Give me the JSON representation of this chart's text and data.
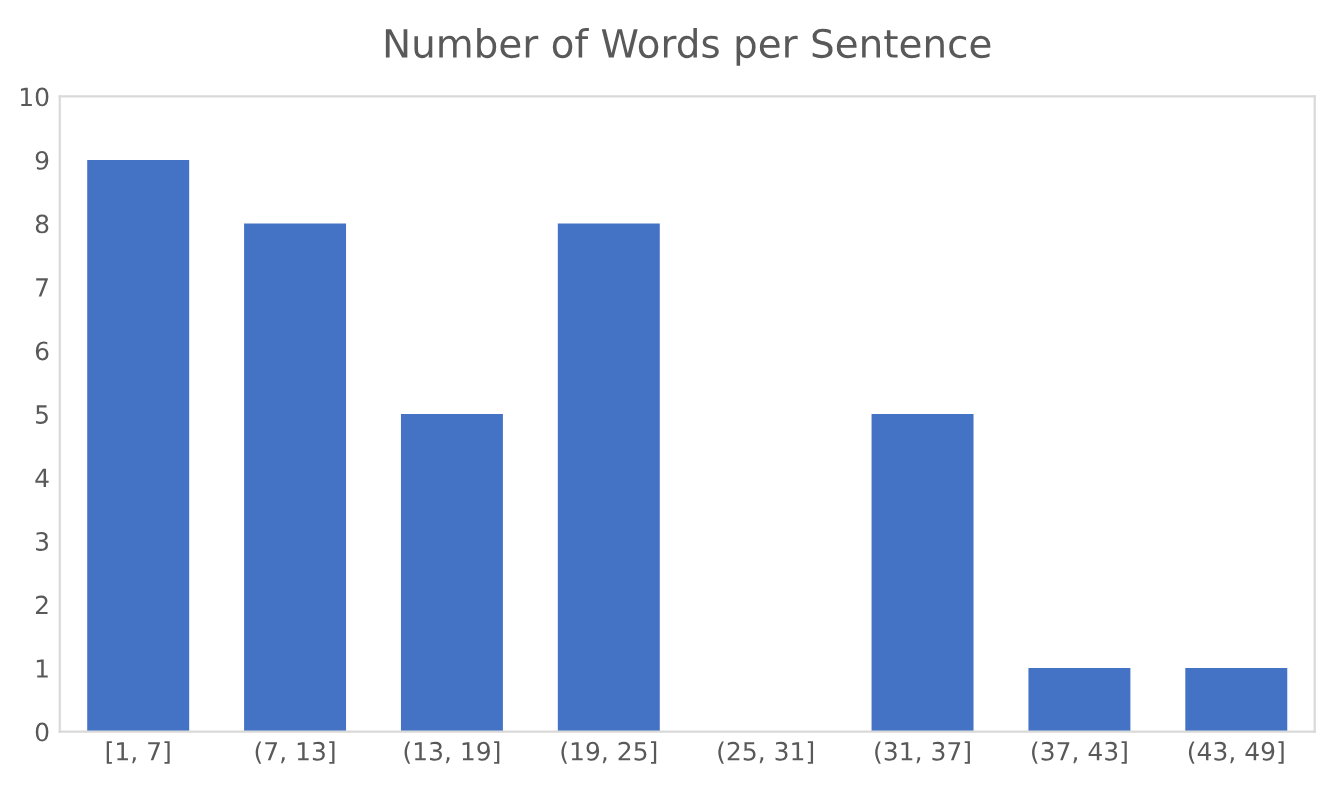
{
  "chart_data": {
    "type": "bar",
    "title": "Number of Words per Sentence",
    "categories": [
      "[1, 7]",
      "(7, 13]",
      "(13, 19]",
      "(19, 25]",
      "(25, 31]",
      "(31, 37]",
      "(37, 43]",
      "(43, 49]"
    ],
    "values": [
      9,
      8,
      5,
      8,
      0,
      5,
      1,
      1
    ],
    "color": "#4472c4",
    "ylim": [
      0,
      10
    ],
    "yticks": [
      0,
      1,
      2,
      3,
      4,
      5,
      6,
      7,
      8,
      9,
      10
    ],
    "grid": false
  }
}
